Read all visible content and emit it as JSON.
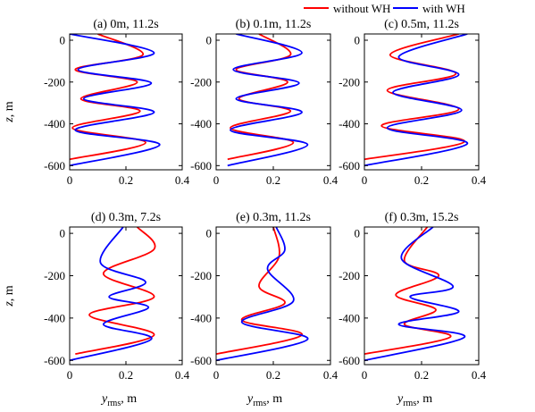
{
  "colors": {
    "without_wh": "#ff0000",
    "with_wh": "#0000ff",
    "axes": "#000000",
    "background": "#ffffff"
  },
  "legend": {
    "placement": "top-right",
    "entries": [
      {
        "label": "without WH",
        "color": "#ff0000"
      },
      {
        "label": "with WH",
        "color": "#0000ff"
      }
    ]
  },
  "axis_labels": {
    "ylabel_italic": "z",
    "ylabel_rest": ", m",
    "xlabel_italic": "y",
    "xlabel_sub": "rms",
    "xlabel_rest": ", m"
  },
  "chart_data": [
    {
      "type": "line",
      "title": "(a)   0m, 11.2s",
      "xlim": [
        0,
        0.4
      ],
      "ylim": [
        -620,
        30
      ],
      "xticks": [
        "0",
        "0.2",
        "0.4"
      ],
      "yticks": [
        "0",
        "-200",
        "-400",
        "-600"
      ],
      "series": [
        {
          "name": "without WH",
          "x": [
            0.1,
            0.26,
            0.02,
            0.24,
            0.04,
            0.25,
            0.01,
            0.27,
            0.0
          ],
          "y": [
            30,
            -70,
            -140,
            -200,
            -280,
            -340,
            -420,
            -490,
            -570
          ]
        },
        {
          "name": "with WH",
          "x": [
            0.0,
            0.3,
            0.03,
            0.29,
            0.05,
            0.3,
            0.02,
            0.32,
            0.0
          ],
          "y": [
            30,
            -60,
            -140,
            -205,
            -280,
            -345,
            -430,
            -500,
            -600
          ]
        }
      ]
    },
    {
      "type": "line",
      "title": "(b)   0.1m, 11.2s",
      "xlim": [
        0,
        0.4
      ],
      "ylim": [
        -620,
        30
      ],
      "xticks": [
        "0",
        "0.2",
        "0.4"
      ],
      "yticks": [
        "0",
        "-200",
        "-400",
        "-600"
      ],
      "series": [
        {
          "name": "without WH",
          "x": [
            0.15,
            0.26,
            0.07,
            0.25,
            0.08,
            0.26,
            0.05,
            0.27,
            0.04
          ],
          "y": [
            30,
            -70,
            -140,
            -200,
            -280,
            -340,
            -420,
            -490,
            -570
          ]
        },
        {
          "name": "with WH",
          "x": [
            0.07,
            0.3,
            0.06,
            0.29,
            0.07,
            0.3,
            0.05,
            0.32,
            0.04
          ],
          "y": [
            30,
            -60,
            -140,
            -205,
            -280,
            -345,
            -430,
            -500,
            -600
          ]
        }
      ]
    },
    {
      "type": "line",
      "title": "(c)   0.5m, 11.2s",
      "xlim": [
        0,
        0.4
      ],
      "ylim": [
        -620,
        30
      ],
      "xticks": [
        "0",
        "0.2",
        "0.4"
      ],
      "yticks": [
        "0",
        "-200",
        "-400",
        "-600"
      ],
      "series": [
        {
          "name": "without WH",
          "x": [
            0.33,
            0.09,
            0.32,
            0.08,
            0.33,
            0.06,
            0.35,
            0.0
          ],
          "y": [
            30,
            -70,
            -160,
            -240,
            -330,
            -410,
            -485,
            -570
          ]
        },
        {
          "name": "with WH",
          "x": [
            0.36,
            0.12,
            0.33,
            0.1,
            0.34,
            0.08,
            0.36,
            0.0
          ],
          "y": [
            30,
            -80,
            -165,
            -250,
            -335,
            -420,
            -495,
            -600
          ]
        }
      ]
    },
    {
      "type": "line",
      "title": "(d)   0.3m, 7.2s",
      "xlim": [
        0,
        0.4
      ],
      "ylim": [
        -620,
        30
      ],
      "xticks": [
        "0",
        "0.2",
        "0.4"
      ],
      "yticks": [
        "0",
        "-200",
        "-400",
        "-600"
      ],
      "series": [
        {
          "name": "without WH",
          "x": [
            0.24,
            0.3,
            0.12,
            0.3,
            0.07,
            0.3,
            0.02
          ],
          "y": [
            30,
            -75,
            -190,
            -300,
            -385,
            -480,
            -570
          ]
        },
        {
          "name": "with WH",
          "x": [
            0.19,
            0.11,
            0.27,
            0.14,
            0.28,
            0.12,
            0.29,
            0.0
          ],
          "y": [
            30,
            -140,
            -230,
            -300,
            -350,
            -430,
            -500,
            -600
          ]
        }
      ]
    },
    {
      "type": "line",
      "title": "(e)   0.3m, 11.2s",
      "xlim": [
        0,
        0.4
      ],
      "ylim": [
        -620,
        30
      ],
      "xticks": [
        "0",
        "0.2",
        "0.4"
      ],
      "yticks": [
        "0",
        "-200",
        "-400",
        "-600"
      ],
      "series": [
        {
          "name": "without WH",
          "x": [
            0.2,
            0.22,
            0.15,
            0.24,
            0.09,
            0.3,
            0.0
          ],
          "y": [
            30,
            -110,
            -250,
            -330,
            -410,
            -480,
            -570
          ]
        },
        {
          "name": "with WH",
          "x": [
            0.21,
            0.24,
            0.18,
            0.27,
            0.09,
            0.32,
            0.0
          ],
          "y": [
            30,
            -80,
            -170,
            -320,
            -420,
            -500,
            -600
          ]
        }
      ]
    },
    {
      "type": "line",
      "title": "(f)   0.3m, 15.2s",
      "xlim": [
        0,
        0.4
      ],
      "ylim": [
        -620,
        30
      ],
      "xticks": [
        "0",
        "0.2",
        "0.4"
      ],
      "yticks": [
        "0",
        "-200",
        "-400",
        "-600"
      ],
      "series": [
        {
          "name": "without WH",
          "x": [
            0.22,
            0.14,
            0.26,
            0.11,
            0.25,
            0.14,
            0.3,
            0.0
          ],
          "y": [
            30,
            -130,
            -200,
            -290,
            -360,
            -430,
            -490,
            -570
          ]
        },
        {
          "name": "with WH",
          "x": [
            0.24,
            0.13,
            0.31,
            0.16,
            0.33,
            0.12,
            0.35,
            0.0
          ],
          "y": [
            30,
            -120,
            -250,
            -300,
            -370,
            -430,
            -490,
            -600
          ]
        }
      ]
    }
  ]
}
